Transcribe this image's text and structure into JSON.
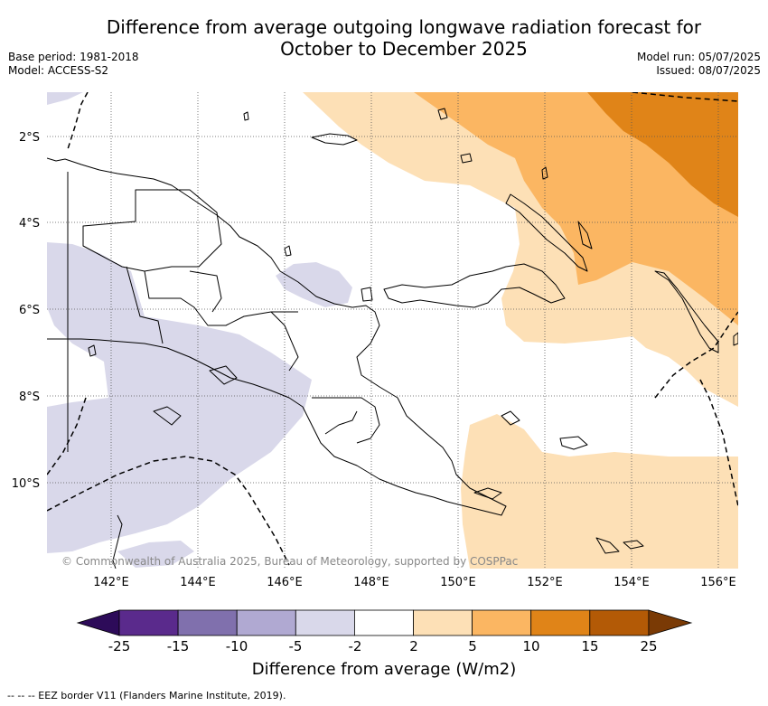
{
  "title_line1": "Difference from average outgoing longwave radiation forecast for",
  "title_line2": "October to December 2025",
  "base_period": "Base period: 1981-2018",
  "model": "Model: ACCESS-S2",
  "model_run": "Model run: 05/07/2025",
  "issued": "Issued: 08/07/2025",
  "copyright": "© Commonwealth of Australia 2025, Bureau of Meteorology, supported by COSPPac",
  "lat_labels": [
    "2°S",
    "4°S",
    "6°S",
    "8°S",
    "10°S"
  ],
  "lon_labels": [
    "142°E",
    "144°E",
    "146°E",
    "148°E",
    "150°E",
    "152°E",
    "154°E",
    "156°E"
  ],
  "colorbar": {
    "ticks": [
      "-25",
      "-15",
      "-10",
      "-5",
      "-2",
      "2",
      "5",
      "10",
      "15",
      "25"
    ],
    "colors": [
      "#2d0b59",
      "#5a2a8c",
      "#8070ad",
      "#b0a9d2",
      "#d9d8ea",
      "#ffffff",
      "#fde0b6",
      "#fbb662",
      "#e08418",
      "#b35a06",
      "#7a3a05"
    ],
    "title": "Difference from average (W/m2)"
  },
  "footnote": "-- -- -- EEZ border V11 (Flanders Marine Institute, 2019)."
}
